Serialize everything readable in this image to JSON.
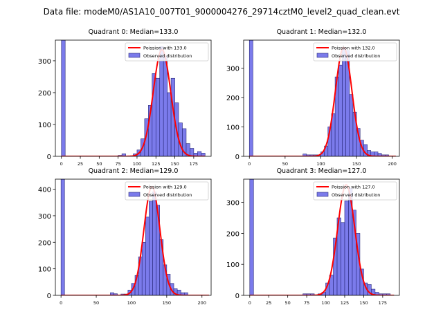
{
  "figure": {
    "suptitle": "Data file: modeM0/AS1A10_007T01_9000004276_29714cztM0_level2_quad_clean.evt"
  },
  "chart_data": [
    {
      "type": "bar",
      "title": "Quadrant 0: Median=133.0",
      "median": 133,
      "bin_width": 5,
      "xlim": [
        -8,
        198
      ],
      "ylim": [
        0,
        365
      ],
      "xticks": [
        0,
        25,
        50,
        75,
        100,
        125,
        150,
        175
      ],
      "yticks": [
        0,
        100,
        200,
        300
      ],
      "bins": [
        {
          "x": 0,
          "count": 365
        },
        {
          "x": 75,
          "count": 3
        },
        {
          "x": 80,
          "count": 8
        },
        {
          "x": 95,
          "count": 8
        },
        {
          "x": 100,
          "count": 20
        },
        {
          "x": 105,
          "count": 55
        },
        {
          "x": 110,
          "count": 118
        },
        {
          "x": 115,
          "count": 160
        },
        {
          "x": 120,
          "count": 260
        },
        {
          "x": 125,
          "count": 245
        },
        {
          "x": 130,
          "count": 345
        },
        {
          "x": 135,
          "count": 315
        },
        {
          "x": 140,
          "count": 200
        },
        {
          "x": 145,
          "count": 245
        },
        {
          "x": 150,
          "count": 168
        },
        {
          "x": 155,
          "count": 105
        },
        {
          "x": 160,
          "count": 87
        },
        {
          "x": 165,
          "count": 40
        },
        {
          "x": 170,
          "count": 25
        },
        {
          "x": 175,
          "count": 10
        },
        {
          "x": 180,
          "count": 15
        },
        {
          "x": 185,
          "count": 10
        }
      ],
      "curve": {
        "mean": 133,
        "peak": 335,
        "x_from": 0,
        "x_to": 190
      },
      "legend": {
        "curve_label": "Poission with 133.0",
        "bar_label": "Observed distribution"
      }
    },
    {
      "type": "bar",
      "title": "Quadrant 1: Median=132.0",
      "median": 132,
      "bin_width": 5,
      "xlim": [
        -8,
        210
      ],
      "ylim": [
        0,
        395
      ],
      "xticks": [
        0,
        50,
        100,
        150,
        200
      ],
      "yticks": [
        0,
        100,
        200,
        300
      ],
      "bins": [
        {
          "x": 0,
          "count": 395
        },
        {
          "x": 75,
          "count": 8
        },
        {
          "x": 80,
          "count": 5
        },
        {
          "x": 85,
          "count": 5
        },
        {
          "x": 90,
          "count": 5
        },
        {
          "x": 95,
          "count": 5
        },
        {
          "x": 100,
          "count": 15
        },
        {
          "x": 105,
          "count": 35
        },
        {
          "x": 110,
          "count": 100
        },
        {
          "x": 115,
          "count": 145
        },
        {
          "x": 120,
          "count": 270
        },
        {
          "x": 125,
          "count": 310
        },
        {
          "x": 130,
          "count": 370
        },
        {
          "x": 135,
          "count": 360
        },
        {
          "x": 140,
          "count": 210
        },
        {
          "x": 145,
          "count": 150
        },
        {
          "x": 150,
          "count": 95
        },
        {
          "x": 155,
          "count": 55
        },
        {
          "x": 160,
          "count": 40
        },
        {
          "x": 165,
          "count": 20
        },
        {
          "x": 170,
          "count": 15
        },
        {
          "x": 175,
          "count": 15
        },
        {
          "x": 180,
          "count": 10
        },
        {
          "x": 185,
          "count": 5
        },
        {
          "x": 190,
          "count": 5
        }
      ],
      "curve": {
        "mean": 132,
        "peak": 370,
        "x_from": 0,
        "x_to": 205
      },
      "legend": {
        "curve_label": "Poission with 132.0",
        "bar_label": "Observed distribution"
      }
    },
    {
      "type": "bar",
      "title": "Quadrant 2: Median=129.0",
      "median": 129,
      "bin_width": 5,
      "xlim": [
        -8,
        213
      ],
      "ylim": [
        0,
        438
      ],
      "xticks": [
        0,
        50,
        100,
        150,
        200
      ],
      "yticks": [
        0,
        100,
        200,
        300,
        400
      ],
      "bins": [
        {
          "x": 0,
          "count": 438
        },
        {
          "x": 70,
          "count": 10
        },
        {
          "x": 75,
          "count": 6
        },
        {
          "x": 85,
          "count": 5
        },
        {
          "x": 90,
          "count": 5
        },
        {
          "x": 95,
          "count": 20
        },
        {
          "x": 100,
          "count": 45
        },
        {
          "x": 105,
          "count": 75
        },
        {
          "x": 110,
          "count": 145
        },
        {
          "x": 115,
          "count": 200
        },
        {
          "x": 120,
          "count": 295
        },
        {
          "x": 125,
          "count": 355
        },
        {
          "x": 130,
          "count": 390
        },
        {
          "x": 135,
          "count": 340
        },
        {
          "x": 140,
          "count": 210
        },
        {
          "x": 145,
          "count": 115
        },
        {
          "x": 150,
          "count": 80
        },
        {
          "x": 155,
          "count": 45
        },
        {
          "x": 160,
          "count": 25
        },
        {
          "x": 165,
          "count": 20
        },
        {
          "x": 170,
          "count": 10
        },
        {
          "x": 175,
          "count": 10
        }
      ],
      "curve": {
        "mean": 129,
        "peak": 410,
        "x_from": 0,
        "x_to": 210
      },
      "legend": {
        "curve_label": "Poission with 129.0",
        "bar_label": "Observed distribution"
      }
    },
    {
      "type": "bar",
      "title": "Quadrant 3: Median=127.0",
      "median": 127,
      "bin_width": 5,
      "xlim": [
        -8,
        197
      ],
      "ylim": [
        0,
        375
      ],
      "xticks": [
        0,
        25,
        50,
        75,
        100,
        125,
        150,
        175
      ],
      "yticks": [
        0,
        100,
        200,
        300
      ],
      "bins": [
        {
          "x": 0,
          "count": 375
        },
        {
          "x": 70,
          "count": 5
        },
        {
          "x": 75,
          "count": 5
        },
        {
          "x": 80,
          "count": 5
        },
        {
          "x": 90,
          "count": 5
        },
        {
          "x": 95,
          "count": 10
        },
        {
          "x": 100,
          "count": 40
        },
        {
          "x": 105,
          "count": 65
        },
        {
          "x": 110,
          "count": 185
        },
        {
          "x": 115,
          "count": 250
        },
        {
          "x": 120,
          "count": 235
        },
        {
          "x": 125,
          "count": 305
        },
        {
          "x": 130,
          "count": 345
        },
        {
          "x": 135,
          "count": 275
        },
        {
          "x": 140,
          "count": 200
        },
        {
          "x": 145,
          "count": 85
        },
        {
          "x": 150,
          "count": 40
        },
        {
          "x": 155,
          "count": 35
        },
        {
          "x": 160,
          "count": 20
        },
        {
          "x": 165,
          "count": 10
        },
        {
          "x": 170,
          "count": 5
        },
        {
          "x": 175,
          "count": 5
        },
        {
          "x": 180,
          "count": 5
        }
      ],
      "curve": {
        "mean": 127,
        "peak": 357,
        "x_from": 0,
        "x_to": 190
      },
      "legend": {
        "curve_label": "Poission with 127.0",
        "bar_label": "Observed distribution"
      }
    }
  ],
  "style": {
    "bar_fill": "#6464e8",
    "bar_stroke": "#2a2a7a",
    "curve_color": "#ff0000",
    "axis_color": "#000000"
  }
}
